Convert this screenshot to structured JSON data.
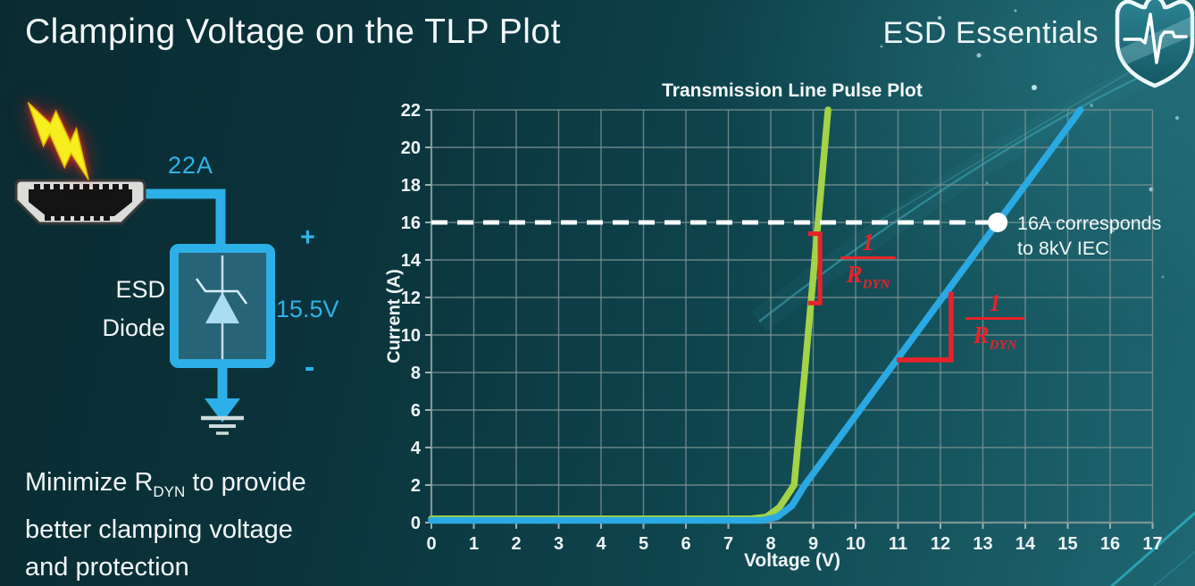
{
  "slide": {
    "title": "Clamping Voltage on the TLP Plot",
    "brand": "ESD Essentials",
    "note": {
      "line1_pre": "Minimize R",
      "line1_sub": "DYN",
      "line1_post": " to provide",
      "line2": "better clamping voltage",
      "line3": "and protection"
    }
  },
  "diagram": {
    "surge_current": "22A",
    "device_line1": "ESD",
    "device_line2": "Diode",
    "polarity_plus": "+",
    "clamping_voltage": "15.5V",
    "polarity_minus": "-",
    "icons": {
      "lightning": "esd-strike-lightning-icon",
      "connector": "hdmi-connector-icon",
      "diode": "tvs-diode-symbol",
      "ground": "ground-symbol",
      "shield": "esd-essentials-shield-logo"
    },
    "accent_color": "#2db0e7"
  },
  "chart_data": {
    "type": "line",
    "title": "Transmission Line Pulse Plot",
    "xlabel": "Voltage (V)",
    "ylabel": "Current (A)",
    "xlim": [
      0,
      17
    ],
    "ylim": [
      0,
      22
    ],
    "xtick_step": 1,
    "ytick_step": 2,
    "grid": true,
    "legend": "none",
    "grid_color": "#7f9496",
    "series": [
      {
        "name": "green",
        "color": "#a2d348",
        "points": [
          [
            0,
            0.2
          ],
          [
            7.5,
            0.2
          ],
          [
            7.9,
            0.3
          ],
          [
            8.2,
            0.8
          ],
          [
            8.55,
            2
          ],
          [
            8.8,
            8
          ],
          [
            9.35,
            22
          ]
        ]
      },
      {
        "name": "blue",
        "color": "#2aa9e2",
        "points": [
          [
            0,
            0.12
          ],
          [
            7.8,
            0.12
          ],
          [
            8.15,
            0.3
          ],
          [
            8.5,
            0.9
          ],
          [
            8.8,
            2
          ],
          [
            13.35,
            16
          ],
          [
            15.3,
            22
          ]
        ]
      }
    ],
    "reference_line": {
      "y": 16,
      "x_start": 0,
      "x_end": 13.35,
      "color": "#ffffff",
      "style": "dashed"
    },
    "marker_point": {
      "x": 13.35,
      "y": 16,
      "color": "#ffffff"
    },
    "marker_note": {
      "line1": "16A corresponds",
      "line2": "to 8kV IEC"
    },
    "slope_label": {
      "numerator": "1",
      "denominator_base": "R",
      "denominator_sub": "DYN",
      "color": "#e8222b"
    },
    "slope_indicators": [
      {
        "shape": "bracket",
        "x": 9.16,
        "y_bottom": 11.7,
        "y_top": 15.4,
        "tick_len": 0.28
      },
      {
        "shape": "right-angle",
        "x_vertical": 12.25,
        "y_top": 12.3,
        "y_bottom": 8.67,
        "x_left": 10.97
      }
    ]
  },
  "colors": {
    "background_dark": "#0a2b31",
    "background_light": "#1f6773",
    "cyan_accent": "#2fb3e8",
    "green_curve": "#a2d348",
    "blue_curve": "#2aa9e2",
    "red_annotation": "#e8222b",
    "text": "#f3f7f7"
  }
}
